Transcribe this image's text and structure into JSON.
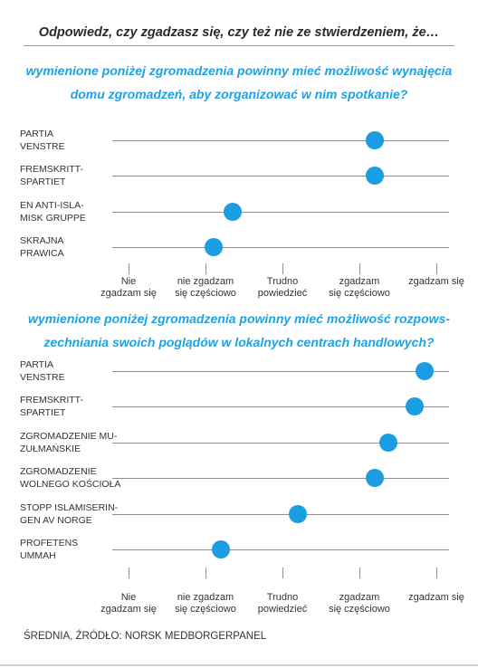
{
  "header": {
    "title": "Odpowiedz, czy zgadzasz się, czy też nie ze stwierdzeniem, że…"
  },
  "footer": {
    "source": "ŚREDNIA, ŹRÓDŁO: NORSK MEDBORGERPANEL"
  },
  "colors": {
    "accent": "#1ea2e3",
    "dot": "#1b9de2",
    "line": "#8f8f8f"
  },
  "chart_data": [
    {
      "type": "scatter",
      "title": "wymienione poniżej zgromadzenia powinny mieć możliwość wynajęcia domu zgromadzeń, aby zorganizować w nim spotkanie?",
      "xlabel": "",
      "ylabel": "",
      "xlim": [
        1,
        5
      ],
      "x_tick_labels": [
        "Nie\nzgadzam się",
        "nie zgadzam\nsię częściowo",
        "Trudno\npowiedzieć",
        "zgadzam\nsię częściowo",
        "zgadzam się"
      ],
      "categories": [
        "PARTIA\nVENSTRE",
        "FREMSKRITT-\nSPARTIET",
        "EN ANTI-ISLA-\nMISK GRUPPE",
        "SKRAJNA\nPRAWICA"
      ],
      "values": [
        4.2,
        4.2,
        2.35,
        2.1
      ]
    },
    {
      "type": "scatter",
      "title": "wymienione poniżej zgromadzenia powinny mieć możliwość rozpowszechniania swoich poglądów w lokalnych centrach handlowych?",
      "xlabel": "",
      "ylabel": "",
      "xlim": [
        1,
        5
      ],
      "x_tick_labels": [
        "Nie\nzgadzam się",
        "nie zgadzam\nsię częściowo",
        "Trudno\npowiedzieć",
        "zgadzam\nsię częściowo",
        "zgadzam się"
      ],
      "categories": [
        "PARTIA\nVENSTRE",
        "FREMSKRITT-\nSPARTIET",
        "ZGROMADZENIE MU-\nZUŁMAŃSKIE",
        "ZGROMADZENIE\nWOLNEGO KOŚCIOŁA",
        "STOPP ISLAMISERIN-\nGEN AV NORGE",
        "PROFETENS\nUMMAH"
      ],
      "values": [
        4.85,
        4.72,
        4.38,
        4.2,
        3.2,
        2.2
      ]
    }
  ]
}
